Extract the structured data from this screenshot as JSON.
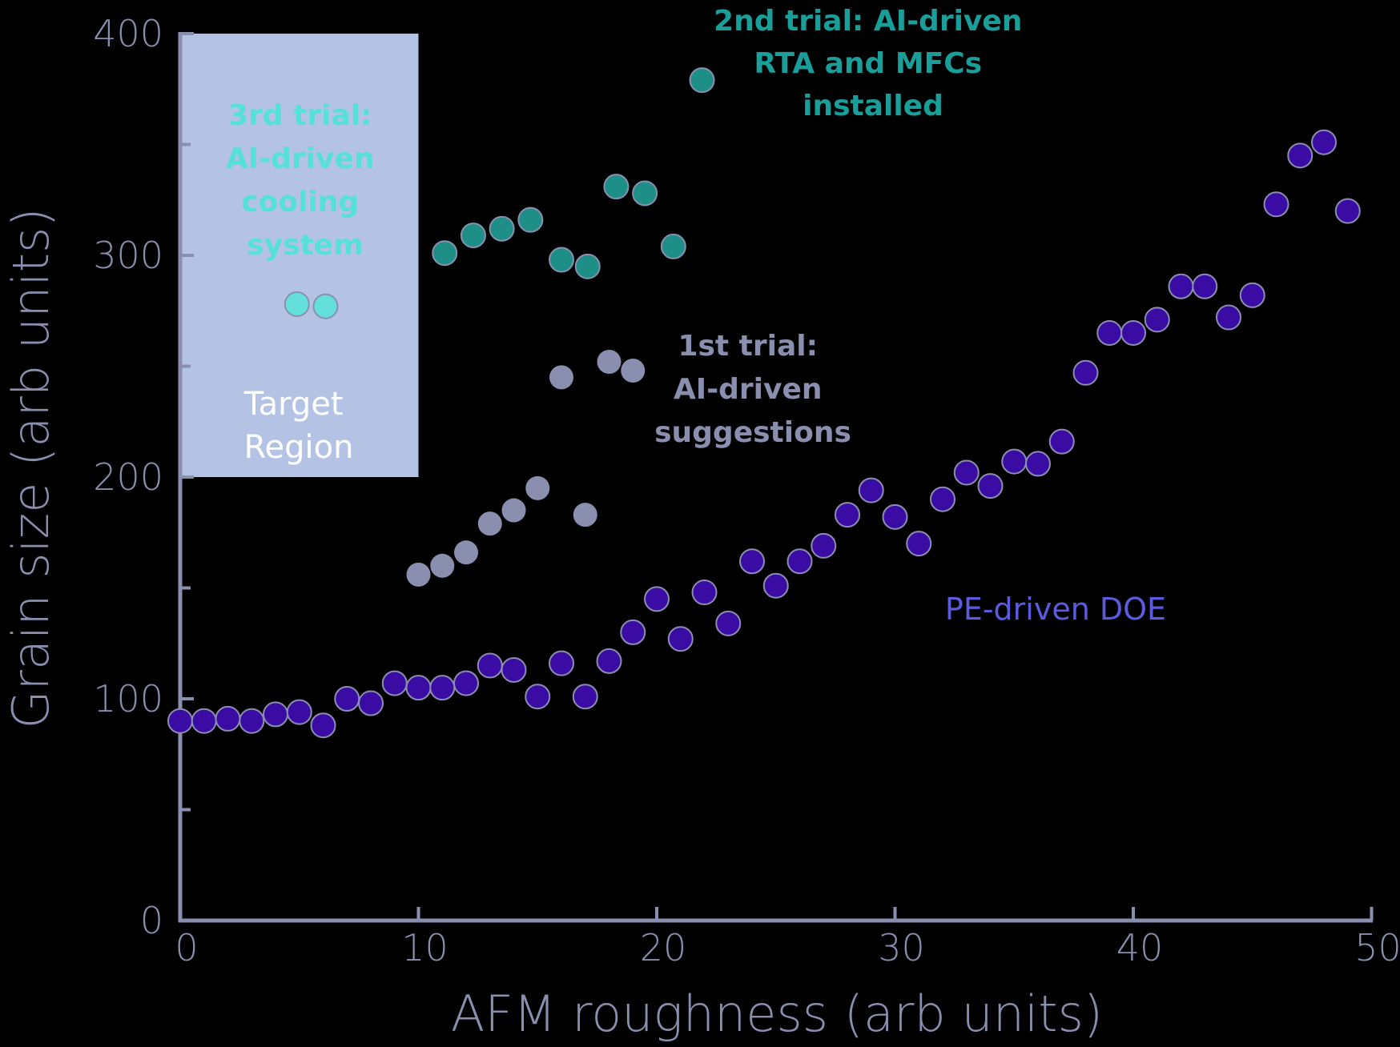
{
  "chart_data": {
    "type": "scatter",
    "title": "",
    "xlabel": "AFM roughness (arb units)",
    "ylabel": "Grain size (arb units)",
    "xlim": [
      0,
      50
    ],
    "ylim": [
      0,
      400
    ],
    "x_ticks": [
      0,
      10,
      20,
      30,
      40,
      50
    ],
    "y_ticks_labeled": [
      0,
      100,
      200,
      300,
      400
    ],
    "y_ticks_minor": [
      50,
      150,
      250,
      350
    ],
    "grid": false,
    "legend": "none (inline annotations)",
    "target_region": {
      "label": "Target Region",
      "x": [
        0,
        10
      ],
      "y": [
        200,
        400
      ],
      "color": "#b4c3e4"
    },
    "series": [
      {
        "name": "PE-driven DOE",
        "fill": "#3a0ca3",
        "label_color": "#5b5be0",
        "x": [
          0,
          1,
          2,
          3,
          4,
          5,
          6,
          7,
          8,
          9,
          10,
          11,
          12,
          13,
          14,
          15,
          16,
          17,
          18,
          19,
          20,
          21,
          22,
          23,
          24,
          25,
          26,
          27,
          28,
          29,
          30,
          31,
          32,
          33,
          34,
          35,
          36,
          37,
          38,
          39,
          40,
          41,
          42,
          43,
          44,
          45,
          46,
          47,
          48,
          49
        ],
        "y": [
          90,
          90,
          91,
          90,
          93,
          94,
          88,
          100,
          98,
          107,
          105,
          105,
          107,
          115,
          113,
          101,
          116,
          101,
          117,
          130,
          145,
          127,
          148,
          134,
          162,
          151,
          162,
          169,
          183,
          194,
          182,
          170,
          190,
          202,
          196,
          207,
          206,
          216,
          247,
          265,
          265,
          271,
          286,
          286,
          272,
          282,
          323,
          345,
          351,
          320
        ]
      },
      {
        "name": "1st trial: AI-driven suggestions",
        "fill": "#8a8fb0",
        "label_color": "#8a8fb0",
        "x": [
          10,
          11,
          12,
          13,
          14,
          15,
          17,
          16,
          18,
          19
        ],
        "y": [
          156,
          160,
          166,
          179,
          185,
          195,
          183,
          245,
          252,
          248
        ]
      },
      {
        "name": "2nd trial: AI-driven RTA and MFCs installed",
        "fill": "#1e8f87",
        "label_color": "#1a9e99",
        "x": [
          11.1,
          12.3,
          13.5,
          14.7,
          16.0,
          17.1,
          18.3,
          19.5,
          20.7,
          21.9
        ],
        "y": [
          301,
          309,
          312,
          316,
          298,
          295,
          331,
          328,
          304,
          379
        ]
      },
      {
        "name": "3rd trial: AI-driven cooling system",
        "fill": "#64e0dc",
        "label_color": "#56e0da",
        "x": [
          4.9,
          6.1
        ],
        "y": [
          278,
          277
        ]
      }
    ],
    "annotations": [
      {
        "lines": [
          "2nd trial: AI-driven",
          "RTA and MFCs",
          "installed"
        ],
        "color": "#1a9e99"
      },
      {
        "lines": [
          "3rd trial:",
          "AI-driven",
          "cooling",
          "system"
        ],
        "color": "#56e0da"
      },
      {
        "lines": [
          "1st trial:",
          "AI-driven",
          "suggestions"
        ],
        "color": "#8a8fb0"
      },
      {
        "lines": [
          "Target",
          "Region"
        ],
        "color": "#ffffff"
      },
      {
        "lines": [
          "PE-driven DOE"
        ],
        "color": "#5b5be0"
      }
    ]
  },
  "labels": {
    "xlabel": "AFM roughness (arb units)",
    "ylabel": "Grain size (arb units)",
    "x_ticks": [
      "0",
      "10",
      "20",
      "30",
      "40",
      "50"
    ],
    "y_ticks": [
      "0",
      "100",
      "200",
      "300",
      "400"
    ],
    "annot_2nd": [
      "2nd trial: AI-driven",
      "RTA and MFCs",
      "installed"
    ],
    "annot_3rd": [
      "3rd trial:",
      "AI-driven",
      "cooling",
      "system"
    ],
    "annot_1st": [
      "1st trial:",
      "AI-driven",
      "suggestions"
    ],
    "annot_target": [
      "Target",
      "Region"
    ],
    "annot_pe": "PE-driven DOE"
  }
}
